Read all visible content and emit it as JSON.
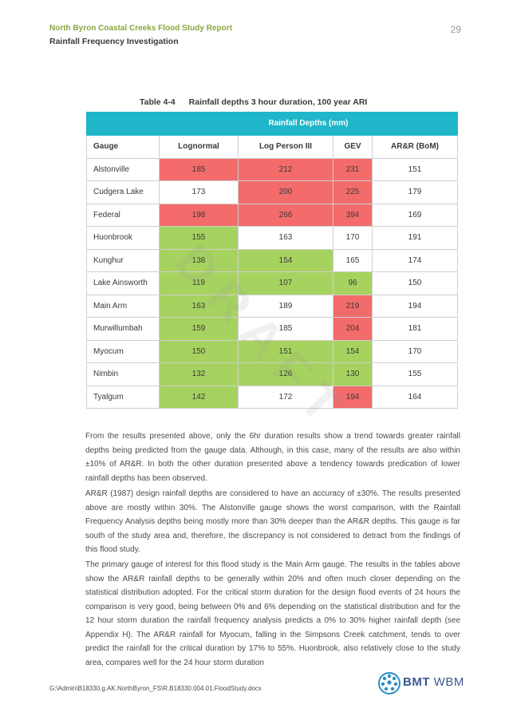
{
  "header": {
    "report_title": "North Byron Coastal Creeks Flood Study Report",
    "section_title": "Rainfall Frequency Investigation",
    "page_number": "29"
  },
  "table": {
    "label": "Table 4-4",
    "title": "Rainfall depths 3 hour duration, 100 year ARI",
    "group_header": "Rainfall Depths (mm)",
    "columns": [
      "Gauge",
      "Lognormal",
      "Log Person III",
      "GEV",
      "AR&R (BoM)"
    ],
    "rows": [
      {
        "gauge": "Alstonville",
        "values": [
          "185",
          "212",
          "231",
          "151"
        ],
        "colors": [
          "red",
          "red",
          "red",
          ""
        ]
      },
      {
        "gauge": "Cudgera Lake",
        "values": [
          "173",
          "200",
          "225",
          "179"
        ],
        "colors": [
          "",
          "red",
          "red",
          ""
        ]
      },
      {
        "gauge": "Federal",
        "values": [
          "198",
          "266",
          "394",
          "169"
        ],
        "colors": [
          "red",
          "red",
          "red",
          ""
        ]
      },
      {
        "gauge": "Huonbrook",
        "values": [
          "155",
          "163",
          "170",
          "191"
        ],
        "colors": [
          "green",
          "",
          "",
          ""
        ]
      },
      {
        "gauge": "Kunghur",
        "values": [
          "138",
          "154",
          "165",
          "174"
        ],
        "colors": [
          "green",
          "green",
          "",
          ""
        ]
      },
      {
        "gauge": "Lake Ainsworth",
        "values": [
          "119",
          "107",
          "96",
          "150"
        ],
        "colors": [
          "green",
          "green",
          "green",
          ""
        ]
      },
      {
        "gauge": "Main Arm",
        "values": [
          "163",
          "189",
          "219",
          "194"
        ],
        "colors": [
          "green",
          "",
          "red",
          ""
        ]
      },
      {
        "gauge": "Murwillumbah",
        "values": [
          "159",
          "185",
          "204",
          "181"
        ],
        "colors": [
          "green",
          "",
          "red",
          ""
        ]
      },
      {
        "gauge": "Myocum",
        "values": [
          "150",
          "151",
          "154",
          "170"
        ],
        "colors": [
          "green",
          "green",
          "green",
          ""
        ]
      },
      {
        "gauge": "Nimbin",
        "values": [
          "132",
          "126",
          "130",
          "155"
        ],
        "colors": [
          "green",
          "green",
          "green",
          ""
        ]
      },
      {
        "gauge": "Tyalgum",
        "values": [
          "142",
          "172",
          "194",
          "164"
        ],
        "colors": [
          "green",
          "",
          "red",
          ""
        ]
      }
    ]
  },
  "watermark": "DRAFT",
  "paragraphs": [
    "From the results presented above, only the 6hr duration results show a trend towards greater rainfall depths being predicted from the gauge data. Although, in this case, many of the results are also within ±10% of AR&R. In both the other duration presented above a tendency towards predication of lower rainfall depths has been observed.",
    "AR&R (1987) design rainfall depths are considered to have an accuracy of ±30%. The results presented above are mostly within 30%. The Alstonville gauge shows the worst comparison, with the Rainfall Frequency Analysis depths being mostly more than 30% deeper than the AR&R depths. This gauge is far south of the study area and, therefore, the discrepancy is not considered to detract from the findings of this flood study.",
    "The primary gauge of interest for this flood study is the Main Arm gauge. The results in the tables above show the AR&R rainfall depths to be generally within 20% and often much closer depending on the statistical distribution adopted. For the critical storm duration for the design flood events of 24 hours the comparison is very good, being between 0% and 6% depending on the statistical distribution and for the 12 hour storm duration the rainfall frequency analysis predicts a 0% to 30% higher rainfall depth (see Appendix H). The AR&R rainfall for Myocum, falling in the Simpsons Creek catchment, tends to over predict the rainfall for the critical duration by 17% to 55%. Huonbrook, also relatively close to the study area, compares well for the 24 hour storm duration"
  ],
  "footer": {
    "path": "G:\\Admin\\B18330.g.AK.NorthByron_FS\\R.B18330.004.01.FloodStudy.docx",
    "logo_bold": "BMT",
    "logo_light": "WBM"
  },
  "colors": {
    "header_green": "#8aa640",
    "table_header_teal": "#1fb6c9",
    "cell_red": "#f36b6b",
    "cell_green": "#a6d35f",
    "logo_blue": "#3a5a8a"
  }
}
